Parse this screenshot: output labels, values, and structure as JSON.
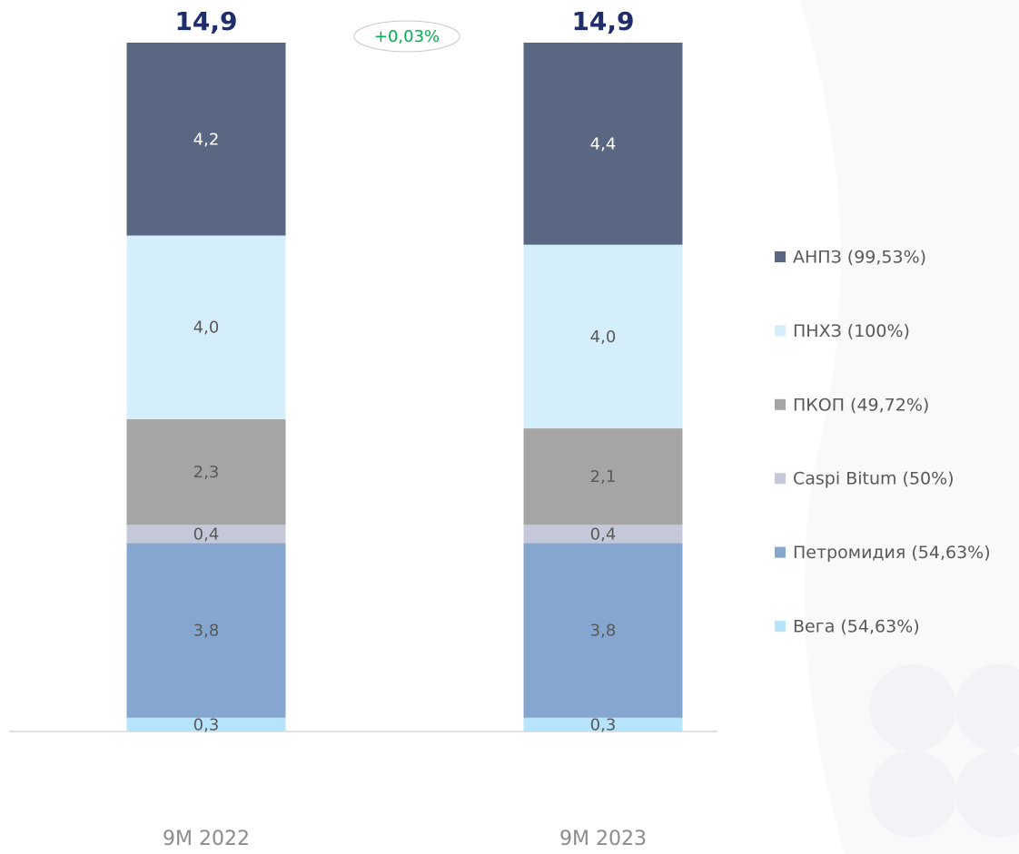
{
  "chart_data": {
    "type": "stacked_bar",
    "categories": [
      "9M 2022",
      "9M 2023"
    ],
    "series": [
      {
        "name": "Вега (54,63%)",
        "color": "#b6e4fb",
        "values": [
          0.3,
          0.3
        ],
        "value_labels": [
          "0,3",
          "0,3"
        ]
      },
      {
        "name": "Петромидия (54,63%)",
        "color": "#84a6cf",
        "values": [
          3.8,
          3.8
        ],
        "value_labels": [
          "3,8",
          "3,8"
        ]
      },
      {
        "name": "Caspi Bitum (50%)",
        "color": "#c5c8d8",
        "values": [
          0.4,
          0.4
        ],
        "value_labels": [
          "0,4",
          "0,4"
        ]
      },
      {
        "name": "ПКОП (49,72%)",
        "color": "#a5a5a5",
        "values": [
          2.3,
          2.1
        ],
        "value_labels": [
          "2,3",
          "2,1"
        ]
      },
      {
        "name": "ПНХЗ (100%)",
        "color": "#d4eefc",
        "values": [
          4.0,
          4.0
        ],
        "value_labels": [
          "4,0",
          "4,0"
        ]
      },
      {
        "name": "АНПЗ (99,53%)",
        "color": "#5a6783",
        "values": [
          4.2,
          4.4
        ],
        "value_labels": [
          "4,2",
          "4,4"
        ]
      }
    ],
    "totals": [
      14.9,
      14.9
    ],
    "total_labels": [
      "14,9",
      "14,9"
    ],
    "annotation": "+0,03%"
  }
}
